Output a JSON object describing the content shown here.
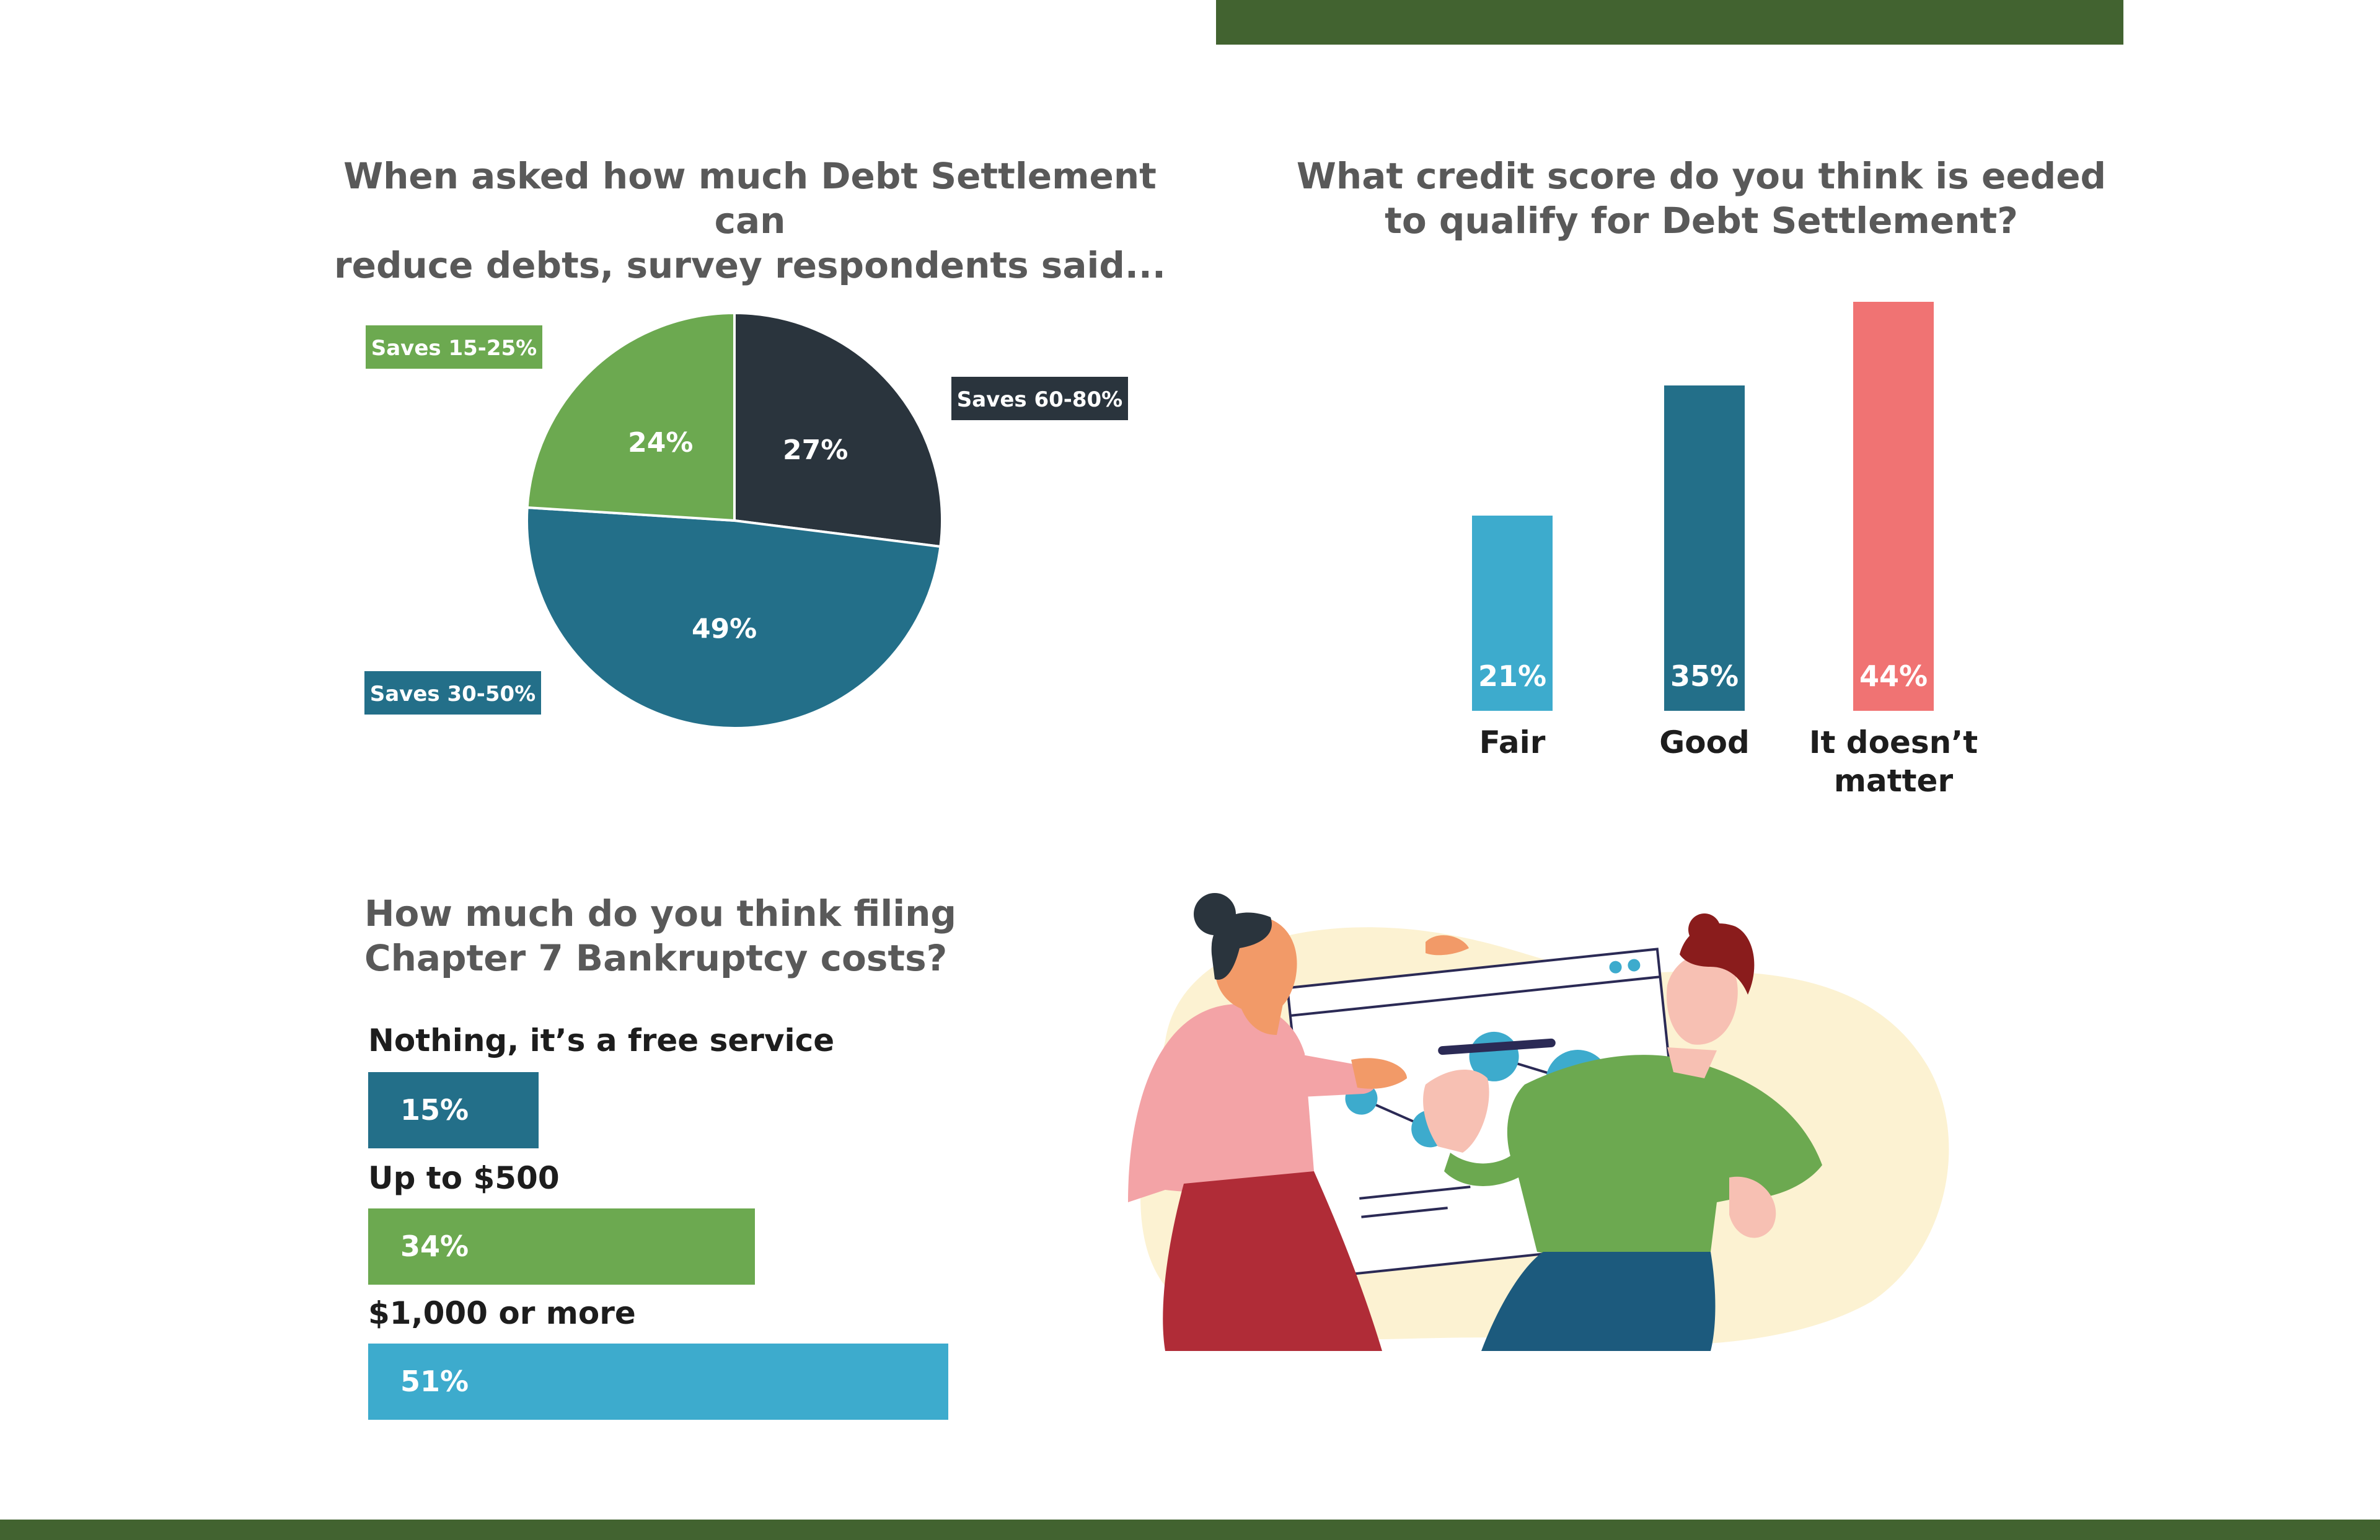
{
  "colors": {
    "brand_dark_green": "#426330",
    "navy": "#2a343d",
    "teal": "#236f89",
    "green": "#6ca950",
    "light_blue": "#3dabcd",
    "coral": "#f07373"
  },
  "chart_data": [
    {
      "type": "pie",
      "title": "When asked how much Debt Settlement can\nreduce debts, survey respondents said...",
      "unit": "%",
      "slices": [
        {
          "label": "Saves 60-80%",
          "value": 27,
          "color": "#2a343d"
        },
        {
          "label": "Saves 30-50%",
          "value": 49,
          "color": "#236f89"
        },
        {
          "label": "Saves 15-25%",
          "value": 24,
          "color": "#6ca950"
        }
      ],
      "data_labels": [
        "27%",
        "49%",
        "24%"
      ]
    },
    {
      "type": "bar",
      "title": "What credit score do you think is eeded\nto qualify for Debt Settlement?",
      "categories": [
        "Fair",
        "Good",
        "It doesn’t\nmatter"
      ],
      "values": [
        21,
        35,
        44
      ],
      "data_labels": [
        "21%",
        "35%",
        "44%"
      ],
      "colors": [
        "#3dabcd",
        "#236f89",
        "#f07373"
      ],
      "ylim": [
        0,
        44
      ]
    },
    {
      "type": "bar",
      "orientation": "horizontal",
      "title": "How much do you think filing\nChapter 7 Bankruptcy costs?",
      "categories": [
        "Nothing, it’s a free service",
        "Up to $500",
        "$1,000 or more"
      ],
      "values": [
        15,
        34,
        51
      ],
      "data_labels": [
        "15%",
        "34%",
        "51%"
      ],
      "colors": [
        "#236f89",
        "#6ca950",
        "#3dabcd"
      ],
      "xlim": [
        0,
        51
      ]
    }
  ],
  "illustration": {
    "icon": "people-analyzing-chart-illustration"
  }
}
